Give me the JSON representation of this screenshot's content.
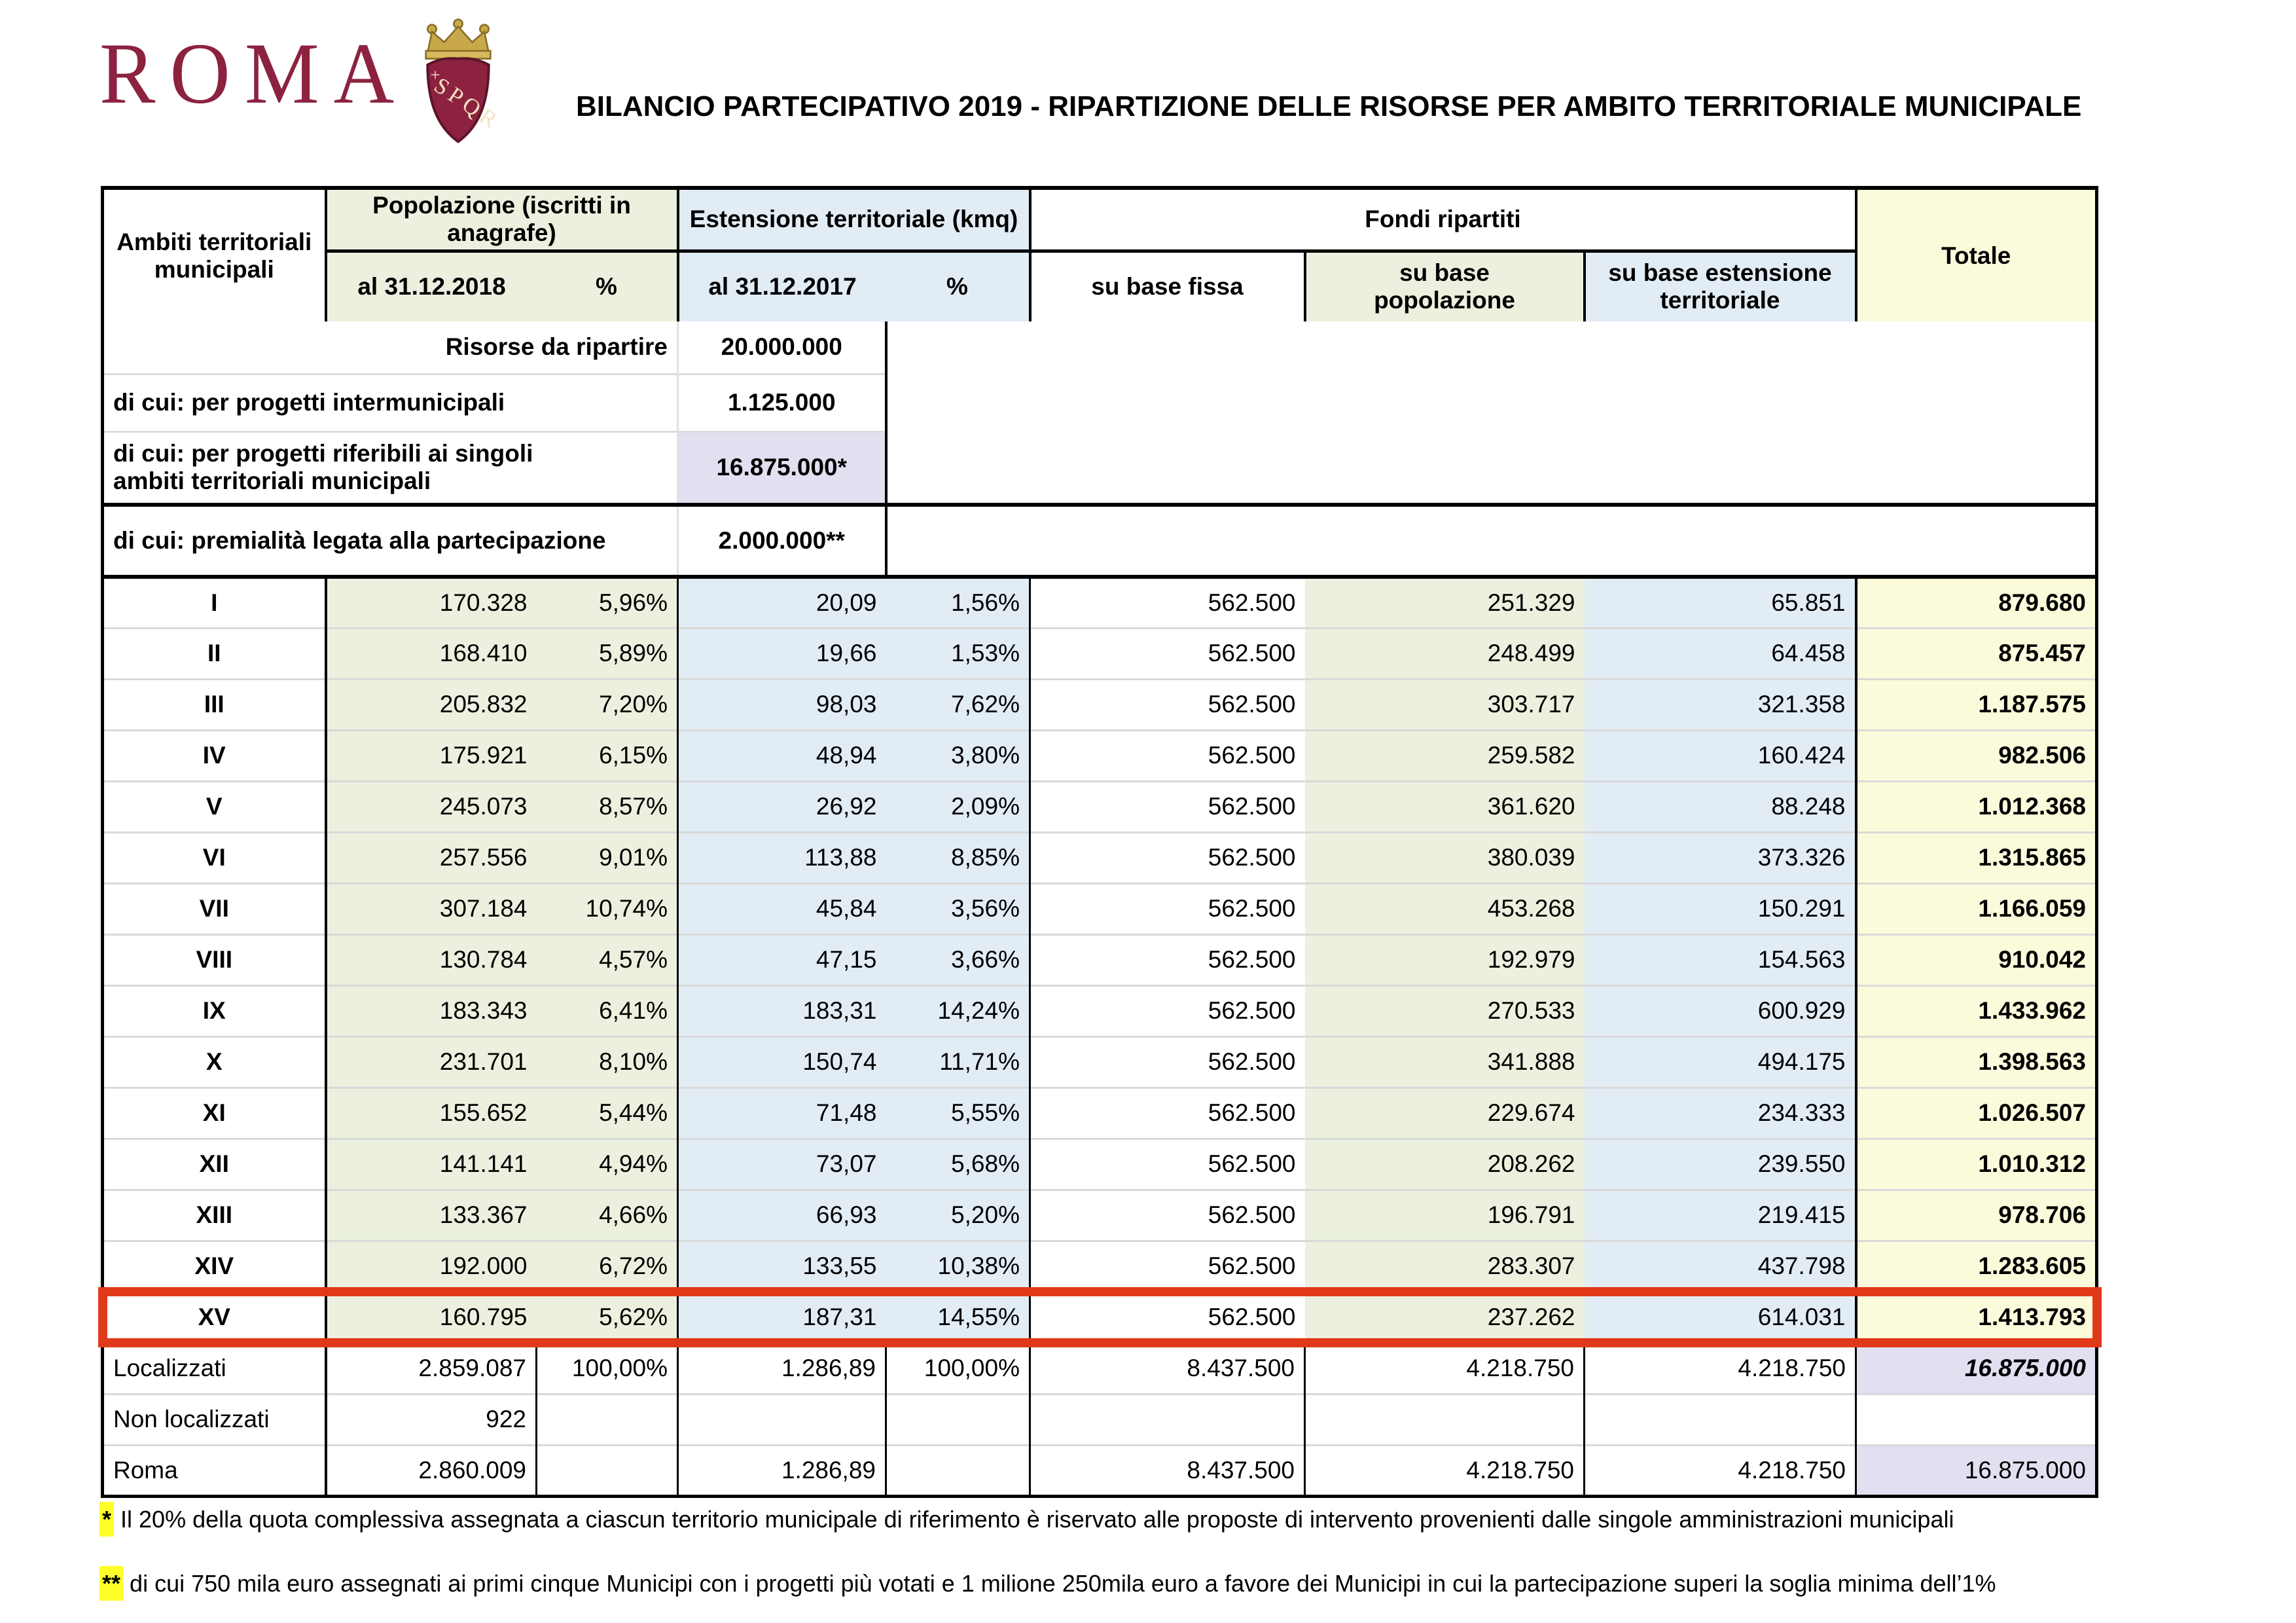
{
  "logo": {
    "wordmark": "ROMA",
    "crest": "spqr-shield-crown"
  },
  "title": "BILANCIO PARTECIPATIVO 2019 - RIPARTIZIONE DELLE RISORSE PER AMBITO TERRITORIALE MUNICIPALE",
  "summary_table": {
    "rows": [
      {
        "label": "Risorse da ripartire",
        "value": "20.000.000"
      },
      {
        "label": "di cui: per progetti intermunicipali",
        "value": "1.125.000"
      },
      {
        "label": "di cui: per progetti riferibili ai singoli ambiti territoriali municipali",
        "value": "16.875.000*"
      },
      {
        "label": "di cui: premialità legata alla partecipazione",
        "value": "2.000.000**"
      }
    ]
  },
  "main_table": {
    "header": {
      "ambiti": "Ambiti territoriali municipali",
      "pop_group": "Popolazione (iscritti in anagrafe)",
      "est_group": "Estensione territoriale (kmq)",
      "fondi_group": "Fondi ripartiti",
      "totale": "Totale",
      "sub_pop_date": "al 31.12.2018",
      "sub_pop_pct": "%",
      "sub_est_date": "al 31.12.2017",
      "sub_est_pct": "%",
      "sub_fissa": "su base fissa",
      "sub_popolazione": "su base popolazione",
      "sub_estensione": "su base estensione territoriale"
    },
    "rows": [
      {
        "cells": [
          "I",
          "170.328",
          "5,96%",
          "20,09",
          "1,56%",
          "562.500",
          "251.329",
          "65.851",
          "879.680"
        ]
      },
      {
        "cells": [
          "II",
          "168.410",
          "5,89%",
          "19,66",
          "1,53%",
          "562.500",
          "248.499",
          "64.458",
          "875.457"
        ]
      },
      {
        "cells": [
          "III",
          "205.832",
          "7,20%",
          "98,03",
          "7,62%",
          "562.500",
          "303.717",
          "321.358",
          "1.187.575"
        ]
      },
      {
        "cells": [
          "IV",
          "175.921",
          "6,15%",
          "48,94",
          "3,80%",
          "562.500",
          "259.582",
          "160.424",
          "982.506"
        ]
      },
      {
        "cells": [
          "V",
          "245.073",
          "8,57%",
          "26,92",
          "2,09%",
          "562.500",
          "361.620",
          "88.248",
          "1.012.368"
        ]
      },
      {
        "cells": [
          "VI",
          "257.556",
          "9,01%",
          "113,88",
          "8,85%",
          "562.500",
          "380.039",
          "373.326",
          "1.315.865"
        ]
      },
      {
        "cells": [
          "VII",
          "307.184",
          "10,74%",
          "45,84",
          "3,56%",
          "562.500",
          "453.268",
          "150.291",
          "1.166.059"
        ]
      },
      {
        "cells": [
          "VIII",
          "130.784",
          "4,57%",
          "47,15",
          "3,66%",
          "562.500",
          "192.979",
          "154.563",
          "910.042"
        ]
      },
      {
        "cells": [
          "IX",
          "183.343",
          "6,41%",
          "183,31",
          "14,24%",
          "562.500",
          "270.533",
          "600.929",
          "1.433.962"
        ]
      },
      {
        "cells": [
          "X",
          "231.701",
          "8,10%",
          "150,74",
          "11,71%",
          "562.500",
          "341.888",
          "494.175",
          "1.398.563"
        ]
      },
      {
        "cells": [
          "XI",
          "155.652",
          "5,44%",
          "71,48",
          "5,55%",
          "562.500",
          "229.674",
          "234.333",
          "1.026.507"
        ]
      },
      {
        "cells": [
          "XII",
          "141.141",
          "4,94%",
          "73,07",
          "5,68%",
          "562.500",
          "208.262",
          "239.550",
          "1.010.312"
        ]
      },
      {
        "cells": [
          "XIII",
          "133.367",
          "4,66%",
          "66,93",
          "5,20%",
          "562.500",
          "196.791",
          "219.415",
          "978.706"
        ]
      },
      {
        "cells": [
          "XIV",
          "192.000",
          "6,72%",
          "133,55",
          "10,38%",
          "562.500",
          "283.307",
          "437.798",
          "1.283.605"
        ]
      },
      {
        "cells": [
          "XV",
          "160.795",
          "5,62%",
          "187,31",
          "14,55%",
          "562.500",
          "237.262",
          "614.031",
          "1.413.793"
        ],
        "highlight": true
      },
      {
        "cells": [
          "Localizzati",
          "2.859.087",
          "100,00%",
          "1.286,89",
          "100,00%",
          "8.437.500",
          "4.218.750",
          "4.218.750",
          "16.875.000"
        ],
        "summary": true,
        "first_summary": true,
        "tot_class": "tot-lav tot-bi"
      },
      {
        "cells": [
          "Non localizzati",
          "922",
          "",
          "",
          "",
          "",
          "",
          "",
          ""
        ],
        "summary": true
      },
      {
        "cells": [
          "Roma",
          "2.860.009",
          "",
          "1.286,89",
          "",
          "8.437.500",
          "4.218.750",
          "4.218.750",
          "16.875.000"
        ],
        "summary": true,
        "tot_class": "tot-lav"
      }
    ]
  },
  "footnotes": [
    {
      "marker": "*",
      "text": "Il 20% della quota complessiva assegnata a ciascun territorio municipale di riferimento è riservato alle proposte di intervento provenienti dalle singole amministrazioni municipali"
    },
    {
      "marker": "**",
      "text": "di cui 750 mila euro assegnati ai primi cinque Municipi con i progetti più votati e 1 milione 250mila euro a favore dei Municipi in cui la partecipazione superi la soglia minima dell’1%"
    }
  ],
  "colors": {
    "brand_maroon": "#8C2240",
    "crown_gold": "#C9A84C",
    "green_fill": "#EBF1DE",
    "blue_fill": "#E2ECF5",
    "yellow_fill": "#FBFBDC",
    "lavender_fill": "#E3DEF0",
    "highlight_red": "#E0391A",
    "footnote_yellow": "#FFFF29"
  }
}
